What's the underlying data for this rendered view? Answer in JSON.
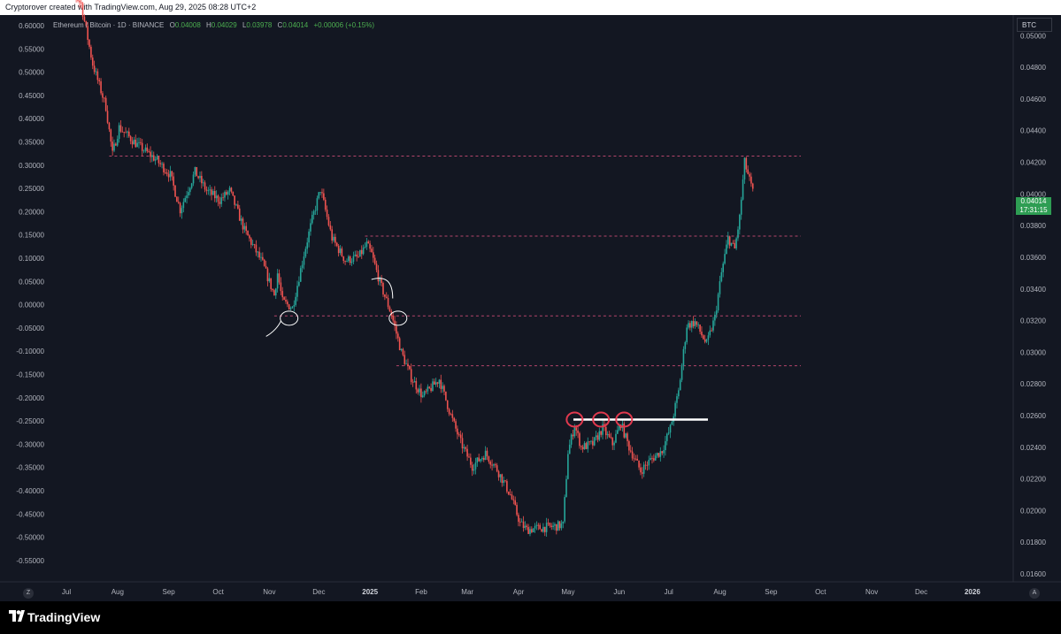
{
  "header": {
    "credit": "Cryptorover created with TradingView.com, Aug 29, 2025 08:28 UTC+2"
  },
  "legend": {
    "symbol": "Ethereum / Bitcoin · 1D · BINANCE",
    "open_label": "O",
    "open": "0.04008",
    "high_label": "H",
    "high": "0.04029",
    "low_label": "L",
    "low": "0.03978",
    "close_label": "C",
    "close": "0.04014",
    "change": "+0.00006 (+0.15%)"
  },
  "price_scale": {
    "currency": "BTC",
    "current_price": "0.04014",
    "countdown": "17:31:15"
  },
  "footer": {
    "brand": "TradingView"
  },
  "buttons": {
    "left_scale": "Z",
    "right_scale": "A"
  },
  "colors": {
    "background": "#131722",
    "up": "#26a69a",
    "down": "#ef5350",
    "level_line": "#b5456b",
    "marker": "#e0394e",
    "annotation": "#ffffff"
  },
  "chart_data": {
    "type": "candlestick",
    "title": "Ethereum / Bitcoin · 1D · BINANCE",
    "x_ticks": [
      "Jul",
      "Aug",
      "Sep",
      "Oct",
      "Nov",
      "Dec",
      "2025",
      "Feb",
      "Mar",
      "Apr",
      "May",
      "Jun",
      "Jul",
      "Aug",
      "Sep",
      "Oct",
      "Nov",
      "Dec",
      "2026"
    ],
    "right_axis": {
      "label": "BTC",
      "ticks": [
        "0.05000",
        "0.04800",
        "0.04600",
        "0.04400",
        "0.04200",
        "0.04000",
        "0.03800",
        "0.03600",
        "0.03400",
        "0.03200",
        "0.03000",
        "0.02800",
        "0.02600",
        "0.02400",
        "0.02200",
        "0.02000",
        "0.01800",
        "0.01600"
      ],
      "range": [
        0.0155,
        0.0513
      ]
    },
    "left_axis": {
      "ticks": [
        "0.60000",
        "0.55000",
        "0.50000",
        "0.45000",
        "0.40000",
        "0.35000",
        "0.30000",
        "0.25000",
        "0.20000",
        "0.15000",
        "0.10000",
        "0.05000",
        "0.00000",
        "-0.05000",
        "-0.10000",
        "-0.15000",
        "-0.20000",
        "-0.25000",
        "-0.30000",
        "-0.35000",
        "-0.40000",
        "-0.45000",
        "-0.50000",
        "-0.55000"
      ]
    },
    "price_path": [
      [
        "2024-07-05",
        0.054
      ],
      [
        "2024-07-18",
        0.052
      ],
      [
        "2024-07-25",
        0.0482
      ],
      [
        "2024-08-02",
        0.0455
      ],
      [
        "2024-08-06",
        0.0425
      ],
      [
        "2024-08-10",
        0.0442
      ],
      [
        "2024-08-20",
        0.0432
      ],
      [
        "2024-09-01",
        0.0422
      ],
      [
        "2024-09-10",
        0.0412
      ],
      [
        "2024-09-16",
        0.039
      ],
      [
        "2024-09-25",
        0.0414
      ],
      [
        "2024-10-02",
        0.0402
      ],
      [
        "2024-10-10",
        0.0396
      ],
      [
        "2024-10-16",
        0.0402
      ],
      [
        "2024-10-25",
        0.0377
      ],
      [
        "2024-11-05",
        0.0356
      ],
      [
        "2024-11-12",
        0.0336
      ],
      [
        "2024-11-14",
        0.035
      ],
      [
        "2024-11-17",
        0.0332
      ],
      [
        "2024-11-23",
        0.0328
      ],
      [
        "2024-11-30",
        0.0362
      ],
      [
        "2024-12-05",
        0.0384
      ],
      [
        "2024-12-10",
        0.0403
      ],
      [
        "2024-12-17",
        0.0372
      ],
      [
        "2024-12-25",
        0.0358
      ],
      [
        "2025-01-02",
        0.036
      ],
      [
        "2025-01-07",
        0.0368
      ],
      [
        "2025-01-10",
        0.0362
      ],
      [
        "2025-01-15",
        0.0344
      ],
      [
        "2025-01-22",
        0.0324
      ],
      [
        "2025-01-28",
        0.03
      ],
      [
        "2025-02-03",
        0.0284
      ],
      [
        "2025-02-10",
        0.0272
      ],
      [
        "2025-02-20",
        0.0283
      ],
      [
        "2025-02-27",
        0.026
      ],
      [
        "2025-03-05",
        0.0243
      ],
      [
        "2025-03-12",
        0.0228
      ],
      [
        "2025-03-20",
        0.0236
      ],
      [
        "2025-03-27",
        0.0226
      ],
      [
        "2025-04-04",
        0.021
      ],
      [
        "2025-04-10",
        0.0192
      ],
      [
        "2025-04-14",
        0.0188
      ],
      [
        "2025-04-22",
        0.0189
      ],
      [
        "2025-05-01",
        0.019
      ],
      [
        "2025-05-06",
        0.0191
      ],
      [
        "2025-05-09",
        0.0237
      ],
      [
        "2025-05-13",
        0.0254
      ],
      [
        "2025-05-17",
        0.024
      ],
      [
        "2025-05-24",
        0.0242
      ],
      [
        "2025-05-30",
        0.0252
      ],
      [
        "2025-06-05",
        0.0242
      ],
      [
        "2025-06-10",
        0.0255
      ],
      [
        "2025-06-15",
        0.024
      ],
      [
        "2025-06-22",
        0.0225
      ],
      [
        "2025-06-28",
        0.0232
      ],
      [
        "2025-07-05",
        0.0238
      ],
      [
        "2025-07-10",
        0.0252
      ],
      [
        "2025-07-15",
        0.0275
      ],
      [
        "2025-07-20",
        0.0317
      ],
      [
        "2025-07-25",
        0.0319
      ],
      [
        "2025-08-01",
        0.0305
      ],
      [
        "2025-08-06",
        0.0322
      ],
      [
        "2025-08-10",
        0.035
      ],
      [
        "2025-08-14",
        0.0372
      ],
      [
        "2025-08-18",
        0.0365
      ],
      [
        "2025-08-21",
        0.0385
      ],
      [
        "2025-08-24",
        0.042
      ],
      [
        "2025-08-29",
        0.0401
      ]
    ],
    "levels": [
      0.04239,
      0.03734,
      0.0323,
      0.02915
    ],
    "resistance_line": 0.02575,
    "resistance_touches": [
      "2025-05-13",
      "2025-05-29",
      "2025-06-12"
    ],
    "annotated_pivots": [
      "2024-11-21",
      "2025-01-26"
    ]
  }
}
